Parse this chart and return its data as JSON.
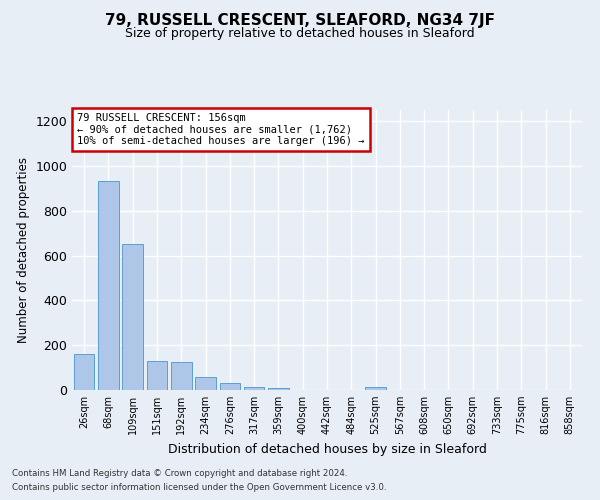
{
  "title": "79, RUSSELL CRESCENT, SLEAFORD, NG34 7JF",
  "subtitle": "Size of property relative to detached houses in Sleaford",
  "xlabel": "Distribution of detached houses by size in Sleaford",
  "ylabel": "Number of detached properties",
  "footnote1": "Contains HM Land Registry data © Crown copyright and database right 2024.",
  "footnote2": "Contains public sector information licensed under the Open Government Licence v3.0.",
  "categories": [
    "26sqm",
    "68sqm",
    "109sqm",
    "151sqm",
    "192sqm",
    "234sqm",
    "276sqm",
    "317sqm",
    "359sqm",
    "400sqm",
    "442sqm",
    "484sqm",
    "525sqm",
    "567sqm",
    "608sqm",
    "650sqm",
    "692sqm",
    "733sqm",
    "775sqm",
    "816sqm",
    "858sqm"
  ],
  "values": [
    160,
    935,
    650,
    130,
    125,
    57,
    30,
    13,
    10,
    0,
    0,
    0,
    14,
    0,
    0,
    0,
    0,
    0,
    0,
    0,
    0
  ],
  "bar_color": "#aec6e8",
  "bar_edge_color": "#5a9fd4",
  "ylim": [
    0,
    1250
  ],
  "yticks": [
    0,
    200,
    400,
    600,
    800,
    1000,
    1200
  ],
  "annotation_text": "79 RUSSELL CRESCENT: 156sqm\n← 90% of detached houses are smaller (1,762)\n10% of semi-detached houses are larger (196) →",
  "annotation_box_color": "#ffffff",
  "annotation_border_color": "#cc0000",
  "bg_color": "#e8eef5",
  "grid_color": "#ffffff",
  "title_fontsize": 11,
  "subtitle_fontsize": 9
}
